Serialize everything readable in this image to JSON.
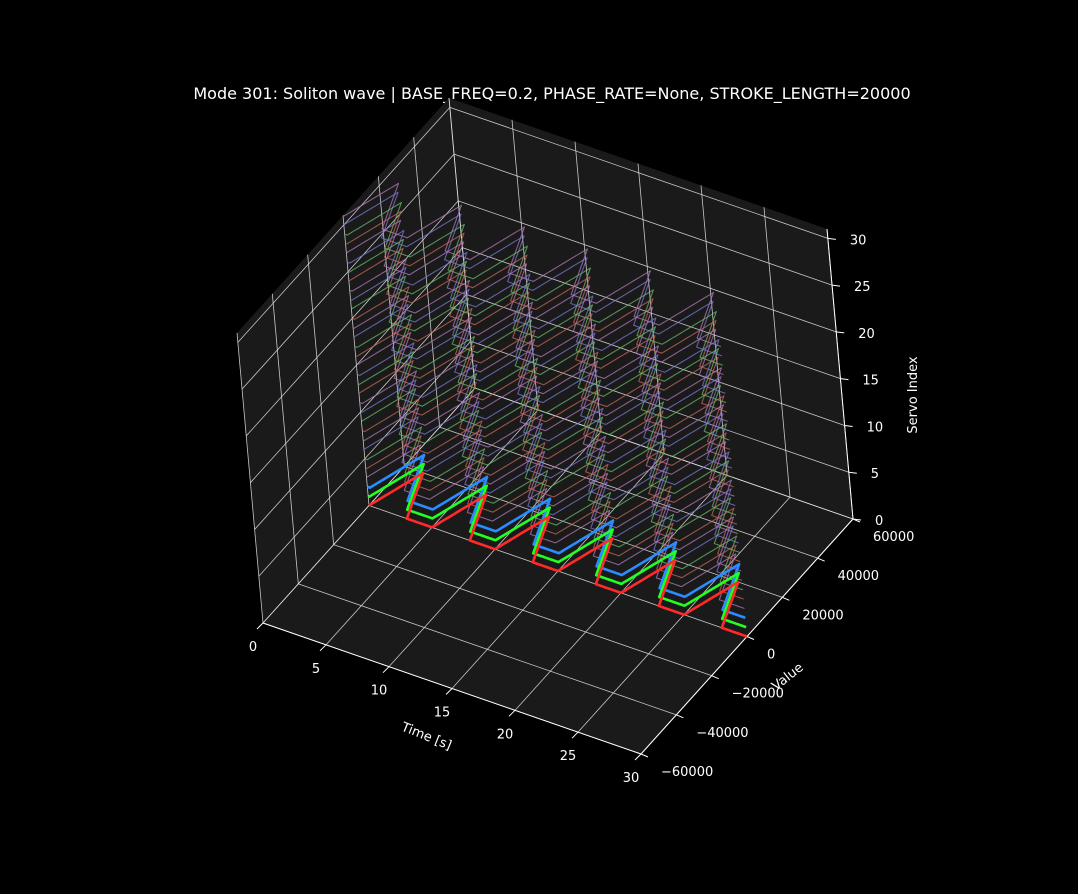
{
  "chart_data": {
    "type": "line",
    "title": "Mode 301: Soliton wave | BASE_FREQ=0.2, PHASE_RATE=None, STROKE_LENGTH=20000",
    "xlabel": "Time [s]",
    "ylabel": "Value",
    "zlabel": "Servo Index",
    "xlim": [
      0,
      30
    ],
    "ylim": [
      -60000,
      60000
    ],
    "zlim": [
      0,
      31
    ],
    "x_ticks": [
      "0",
      "5",
      "10",
      "15",
      "20",
      "25",
      "30"
    ],
    "y_ticks": [
      "−60000",
      "−40000",
      "−20000",
      "0",
      "20000",
      "40000",
      "60000"
    ],
    "z_ticks": [
      "0",
      "5",
      "10",
      "15",
      "20",
      "25",
      "30"
    ],
    "grid": true,
    "series_count": 32,
    "base_freq": 0.2,
    "stroke_length": 20000,
    "series_colors": [
      "#ff2a2a",
      "#22ff22",
      "#2a8cff"
    ],
    "faded_colors": [
      "#c26a5a",
      "#6ab86a",
      "#7a7ad0",
      "#b07ab8"
    ],
    "background": "#000000",
    "pane_color": "#1a1a1a",
    "grid_color": "#e6e6e6"
  }
}
